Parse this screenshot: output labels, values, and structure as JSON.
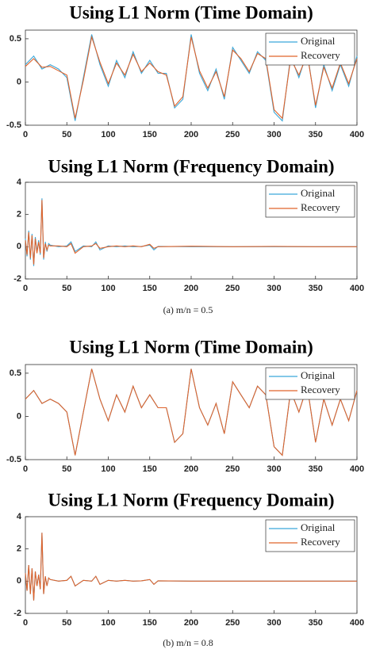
{
  "chart_data": [
    {
      "type": "line",
      "title": "Using L1 Norm (Time Domain)",
      "x": [
        0,
        10,
        20,
        30,
        40,
        50,
        60,
        70,
        80,
        90,
        100,
        110,
        120,
        130,
        140,
        150,
        160,
        170,
        180,
        190,
        200,
        210,
        220,
        230,
        240,
        250,
        260,
        270,
        280,
        290,
        300,
        310,
        320,
        330,
        340,
        350,
        360,
        370,
        380,
        390,
        400
      ],
      "series": [
        {
          "name": "Original",
          "color": "#3aa7d9",
          "values": [
            0.2,
            0.3,
            0.15,
            0.2,
            0.15,
            0.05,
            -0.45,
            0.05,
            0.55,
            0.2,
            -0.05,
            0.25,
            0.05,
            0.35,
            0.1,
            0.25,
            0.1,
            0.1,
            -0.3,
            -0.2,
            0.55,
            0.1,
            -0.1,
            0.15,
            -0.2,
            0.4,
            0.25,
            0.1,
            0.35,
            0.25,
            -0.35,
            -0.45,
            0.3,
            0.05,
            0.35,
            -0.3,
            0.2,
            -0.1,
            0.2,
            -0.05,
            0.3
          ]
        },
        {
          "name": "Recovery",
          "color": "#e0632b",
          "values": [
            0.18,
            0.27,
            0.17,
            0.18,
            0.13,
            0.08,
            -0.42,
            0.02,
            0.52,
            0.23,
            -0.02,
            0.22,
            0.08,
            0.32,
            0.12,
            0.22,
            0.12,
            0.08,
            -0.28,
            -0.17,
            0.52,
            0.13,
            -0.07,
            0.12,
            -0.17,
            0.37,
            0.27,
            0.12,
            0.33,
            0.27,
            -0.32,
            -0.42,
            0.27,
            0.08,
            0.32,
            -0.27,
            0.17,
            -0.07,
            0.22,
            -0.02,
            0.27
          ]
        }
      ],
      "xlim": [
        0,
        400
      ],
      "ylim": [
        -0.5,
        0.6
      ],
      "xticks": [
        0,
        50,
        100,
        150,
        200,
        250,
        300,
        350,
        400
      ],
      "yticks": [
        -0.5,
        0,
        0.5
      ],
      "legend": "northeast"
    },
    {
      "type": "line",
      "title": "Using L1 Norm (Frequency Domain)",
      "x": [
        0,
        2,
        4,
        6,
        8,
        10,
        12,
        14,
        16,
        18,
        20,
        22,
        24,
        26,
        28,
        30,
        40,
        50,
        55,
        60,
        70,
        80,
        85,
        90,
        100,
        110,
        120,
        130,
        140,
        150,
        155,
        160,
        200,
        250,
        300,
        350,
        400
      ],
      "series": [
        {
          "name": "Original",
          "color": "#3aa7d9",
          "values": [
            0.5,
            -0.6,
            1,
            -0.8,
            0.8,
            -1.2,
            0.6,
            -0.3,
            0.4,
            -0.5,
            3,
            -0.8,
            0.3,
            -0.3,
            0.2,
            0.1,
            0,
            0.05,
            0.3,
            -0.3,
            0.05,
            0,
            0.3,
            -0.2,
            0.05,
            0,
            0.05,
            0,
            0.02,
            0.1,
            -0.2,
            0.02,
            0,
            0,
            0,
            0,
            0
          ]
        },
        {
          "name": "Recovery",
          "color": "#e0632b",
          "values": [
            0.4,
            -0.5,
            0.9,
            -0.7,
            0.7,
            -1.1,
            0.5,
            -0.4,
            0.3,
            -0.4,
            2.9,
            -0.7,
            0.2,
            -0.2,
            0.1,
            0.05,
            0.05,
            0,
            0.2,
            -0.4,
            0,
            0.05,
            0.2,
            -0.1,
            0,
            0.05,
            0,
            0.05,
            0,
            0.15,
            -0.1,
            0,
            0.03,
            0,
            0.02,
            0,
            0
          ]
        }
      ],
      "xlim": [
        0,
        400
      ],
      "ylim": [
        -2,
        4
      ],
      "xticks": [
        0,
        50,
        100,
        150,
        200,
        250,
        300,
        350,
        400
      ],
      "yticks": [
        -2,
        0,
        2,
        4
      ],
      "legend": "northeast"
    },
    {
      "type": "line",
      "title": "Using L1 Norm (Time Domain)",
      "x": [
        0,
        10,
        20,
        30,
        40,
        50,
        60,
        70,
        80,
        90,
        100,
        110,
        120,
        130,
        140,
        150,
        160,
        170,
        180,
        190,
        200,
        210,
        220,
        230,
        240,
        250,
        260,
        270,
        280,
        290,
        300,
        310,
        320,
        330,
        340,
        350,
        360,
        370,
        380,
        390,
        400
      ],
      "series": [
        {
          "name": "Original",
          "color": "#3aa7d9",
          "values": [
            0.2,
            0.3,
            0.15,
            0.2,
            0.15,
            0.05,
            -0.45,
            0.05,
            0.55,
            0.2,
            -0.05,
            0.25,
            0.05,
            0.35,
            0.1,
            0.25,
            0.1,
            0.1,
            -0.3,
            -0.2,
            0.55,
            0.1,
            -0.1,
            0.15,
            -0.2,
            0.4,
            0.25,
            0.1,
            0.35,
            0.25,
            -0.35,
            -0.45,
            0.3,
            0.05,
            0.35,
            -0.3,
            0.2,
            -0.1,
            0.2,
            -0.05,
            0.3
          ]
        },
        {
          "name": "Recovery",
          "color": "#e0632b",
          "values": [
            0.2,
            0.3,
            0.15,
            0.2,
            0.15,
            0.05,
            -0.45,
            0.05,
            0.55,
            0.2,
            -0.05,
            0.25,
            0.05,
            0.35,
            0.1,
            0.25,
            0.1,
            0.1,
            -0.3,
            -0.2,
            0.55,
            0.1,
            -0.1,
            0.15,
            -0.2,
            0.4,
            0.25,
            0.1,
            0.35,
            0.25,
            -0.35,
            -0.45,
            0.3,
            0.05,
            0.35,
            -0.3,
            0.2,
            -0.1,
            0.2,
            -0.05,
            0.3
          ]
        }
      ],
      "xlim": [
        0,
        400
      ],
      "ylim": [
        -0.5,
        0.6
      ],
      "xticks": [
        0,
        50,
        100,
        150,
        200,
        250,
        300,
        350,
        400
      ],
      "yticks": [
        -0.5,
        0,
        0.5
      ],
      "legend": "northeast"
    },
    {
      "type": "line",
      "title": "Using L1 Norm (Frequency Domain)",
      "x": [
        0,
        2,
        4,
        6,
        8,
        10,
        12,
        14,
        16,
        18,
        20,
        22,
        24,
        26,
        28,
        30,
        40,
        50,
        55,
        60,
        70,
        80,
        85,
        90,
        100,
        110,
        120,
        130,
        140,
        150,
        155,
        160,
        200,
        250,
        300,
        350,
        400
      ],
      "series": [
        {
          "name": "Original",
          "color": "#3aa7d9",
          "values": [
            0.5,
            -0.6,
            1,
            -0.8,
            0.8,
            -1.2,
            0.6,
            -0.3,
            0.4,
            -0.5,
            3,
            -0.8,
            0.3,
            -0.3,
            0.2,
            0.1,
            0,
            0.05,
            0.3,
            -0.3,
            0.05,
            0,
            0.3,
            -0.2,
            0.05,
            0,
            0.05,
            0,
            0.02,
            0.1,
            -0.2,
            0.02,
            0,
            0,
            0,
            0,
            0
          ]
        },
        {
          "name": "Recovery",
          "color": "#e0632b",
          "values": [
            0.5,
            -0.6,
            1,
            -0.8,
            0.8,
            -1.2,
            0.6,
            -0.3,
            0.4,
            -0.5,
            3,
            -0.8,
            0.3,
            -0.3,
            0.2,
            0.1,
            0,
            0.05,
            0.3,
            -0.3,
            0.05,
            0,
            0.3,
            -0.2,
            0.05,
            0,
            0.05,
            0,
            0.02,
            0.1,
            -0.2,
            0.02,
            0,
            0,
            0,
            0,
            0
          ]
        }
      ],
      "xlim": [
        0,
        400
      ],
      "ylim": [
        -2,
        4
      ],
      "xticks": [
        0,
        50,
        100,
        150,
        200,
        250,
        300,
        350,
        400
      ],
      "yticks": [
        -2,
        0,
        2,
        4
      ],
      "legend": "northeast"
    }
  ],
  "captions": [
    "(a) m/n = 0.5",
    "(b) m/n = 0.8"
  ]
}
